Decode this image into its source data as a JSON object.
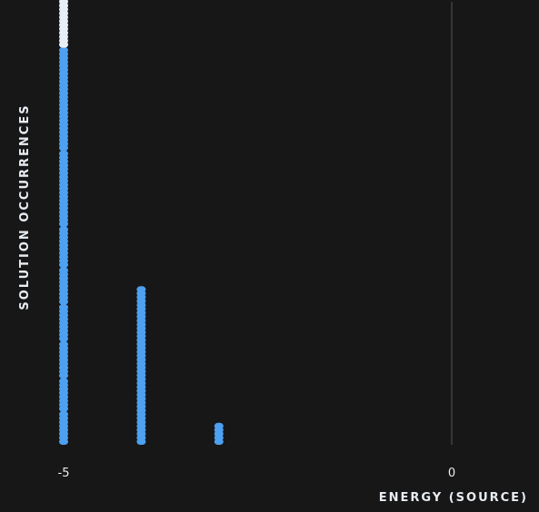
{
  "chart_data": {
    "type": "scatter",
    "title": "",
    "xlabel": "ENERGY (SOURCE)",
    "ylabel": "SOLUTION OCCURRENCES",
    "xlim": [
      -5,
      0
    ],
    "xticks": [
      {
        "value": -5,
        "label": "-5"
      },
      {
        "value": 0,
        "label": "0"
      }
    ],
    "grid": true,
    "colors": {
      "background": "#171717",
      "gridline": "#555555",
      "primary": "#4ea0f0",
      "highlight": "#e6eef7",
      "text": "#e9edf2"
    },
    "columns": [
      {
        "energy": -5,
        "stacks": [
          {
            "count": 8,
            "color": "primary"
          },
          {
            "count": 8,
            "color": "primary"
          },
          {
            "count": 9,
            "color": "primary"
          },
          {
            "count": 9,
            "color": "primary"
          },
          {
            "count": 9,
            "color": "primary"
          },
          {
            "count": 10,
            "color": "primary"
          },
          {
            "count": 19,
            "color": "primary"
          },
          {
            "count": 26,
            "color": "primary"
          },
          {
            "count": 32,
            "color": "highlight"
          }
        ]
      },
      {
        "energy": -4,
        "stacks": [
          {
            "count": 40,
            "color": "primary"
          }
        ]
      },
      {
        "energy": -3,
        "stacks": [
          {
            "count": 5,
            "color": "primary"
          }
        ]
      }
    ]
  }
}
